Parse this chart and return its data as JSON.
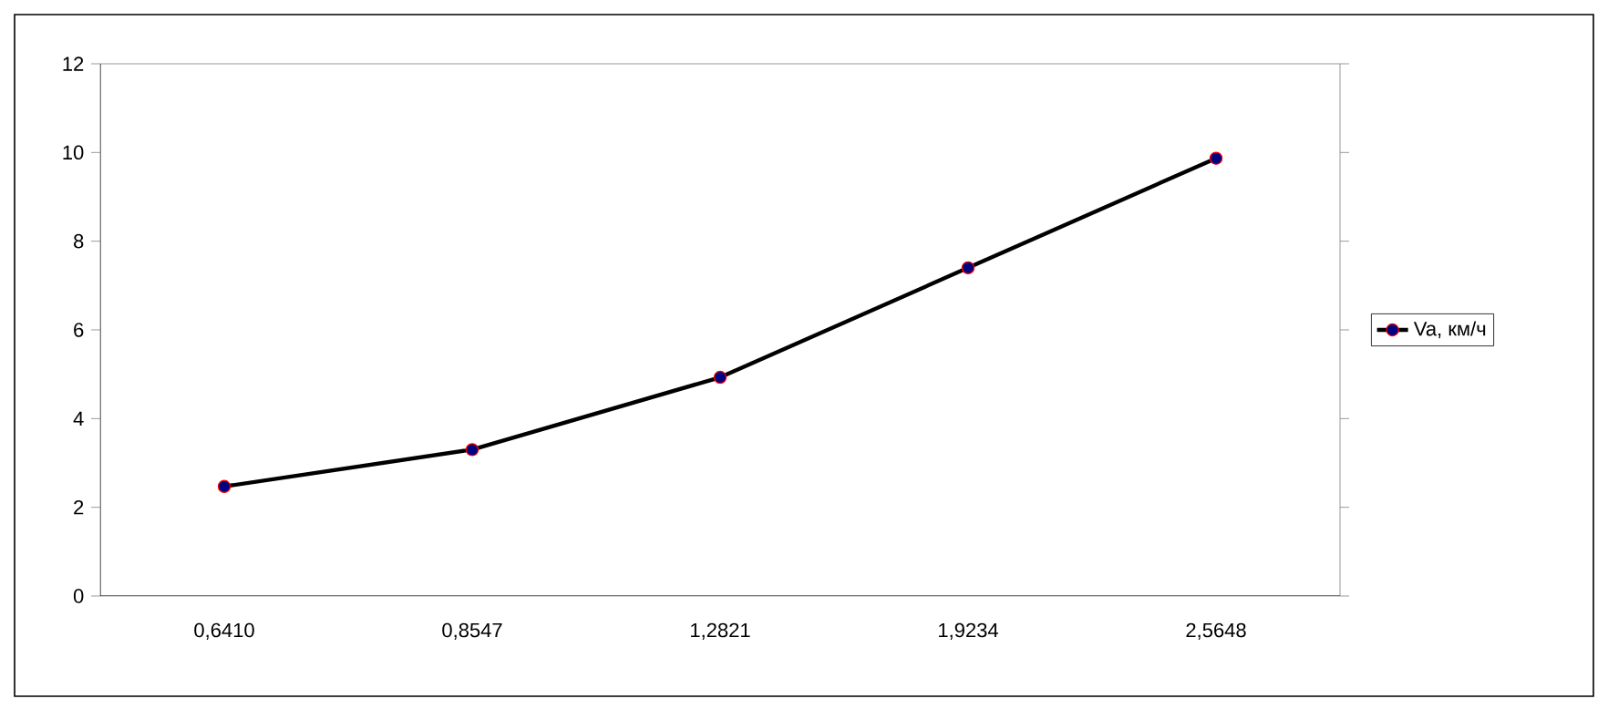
{
  "chart_data": {
    "type": "line",
    "categories": [
      "0,6410",
      "0,8547",
      "1,2821",
      "1,9234",
      "2,5648"
    ],
    "series": [
      {
        "name": "Va, км/ч",
        "color": "#000000",
        "values": [
          2.47,
          3.3,
          4.93,
          7.4,
          9.87
        ]
      }
    ],
    "ylim": [
      0,
      12
    ],
    "yticks": [
      0,
      2,
      4,
      6,
      8,
      10,
      12
    ],
    "grid": false,
    "legend": "right",
    "marker": "circle",
    "line_style": "solid"
  }
}
